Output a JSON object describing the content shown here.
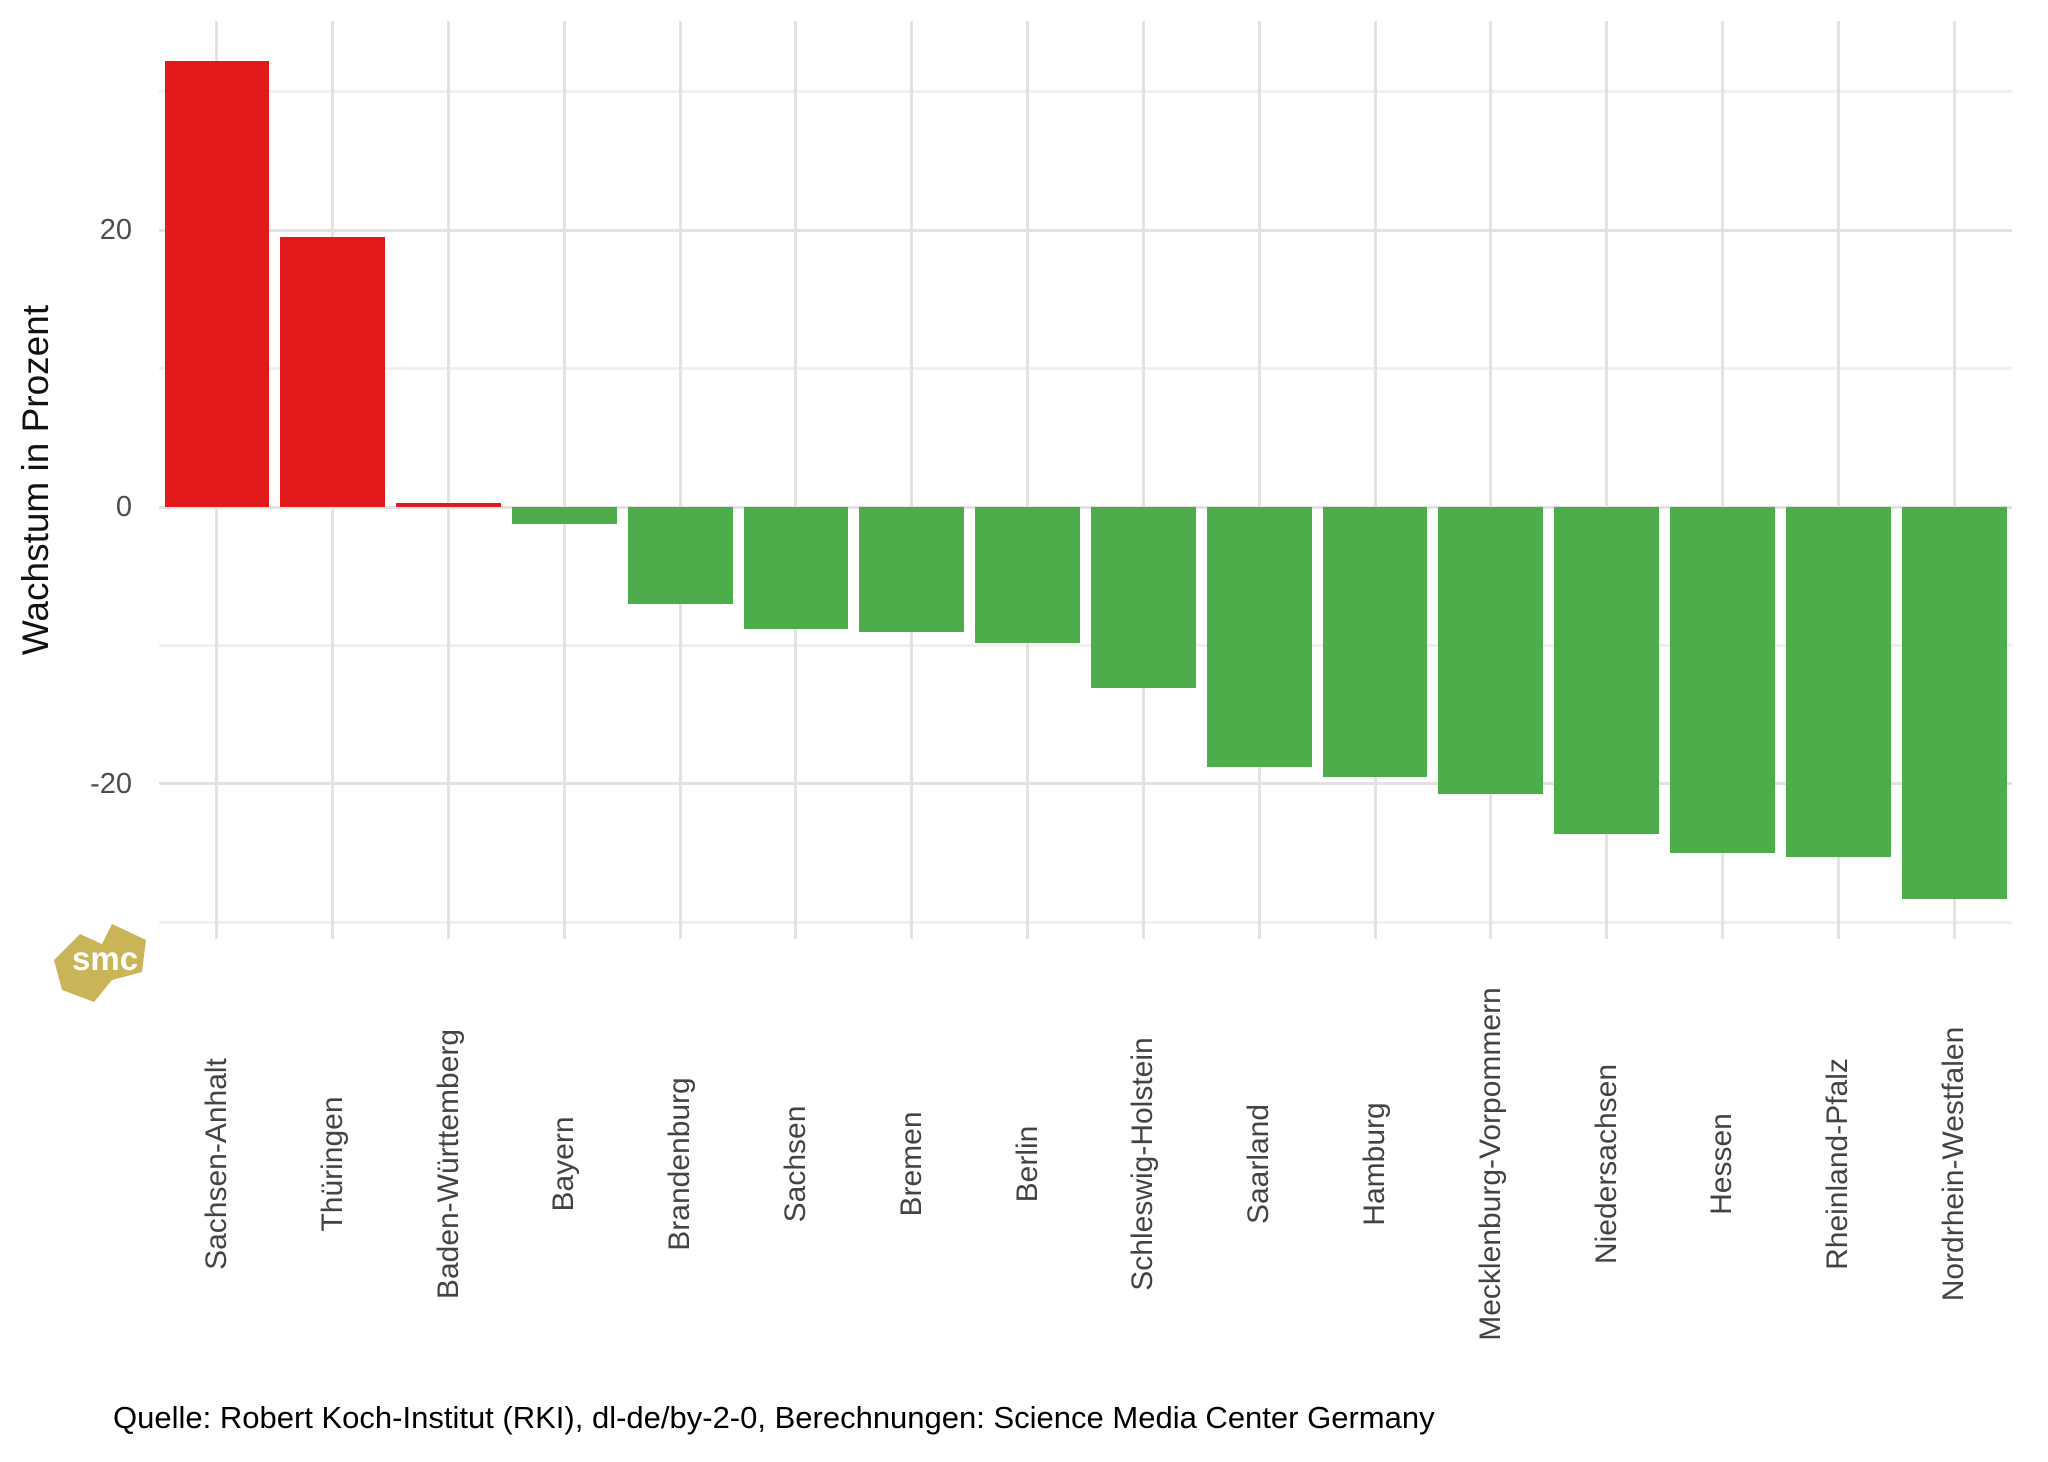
{
  "chart_data": {
    "type": "bar",
    "title": "",
    "xlabel": "",
    "ylabel": "Wachstum in Prozent",
    "categories": [
      "Sachsen-Anhalt",
      "Thüringen",
      "Baden-Württemberg",
      "Bayern",
      "Brandenburg",
      "Sachsen",
      "Bremen",
      "Berlin",
      "Schleswig-Holstein",
      "Saarland",
      "Hamburg",
      "Mecklenburg-Vorpommern",
      "Niedersachsen",
      "Hessen",
      "Rheinland-Pfalz",
      "Nordrhein-Westfalen"
    ],
    "values": [
      32.2,
      19.5,
      0.3,
      -1.2,
      -7.0,
      -8.8,
      -9.0,
      -9.8,
      -13.1,
      -18.8,
      -19.5,
      -20.7,
      -23.6,
      -25.0,
      -25.3,
      -28.3
    ],
    "ylim": [
      -31.2,
      35.1
    ],
    "yticks_major": [
      20,
      0,
      -20
    ],
    "yticks_minor": [
      30,
      10,
      -10,
      -30
    ],
    "grid": "on",
    "legend": "none",
    "bar_color_positive": "#e31a1c",
    "bar_color_negative": "#4cad4a"
  },
  "caption": "Quelle: Robert Koch-Institut (RKI), dl-de/by-2-0, Berechnungen: Science Media Center Germany",
  "logo": {
    "text": "smc",
    "shape_color": "#c9b458",
    "text_color": "#ffffff"
  },
  "colors": {
    "grid_major": "#e2e2e2",
    "grid_minor": "#f0f0f0",
    "tick_label": "#4d4d4d",
    "axis_title": "#111111",
    "background": "#ffffff"
  }
}
